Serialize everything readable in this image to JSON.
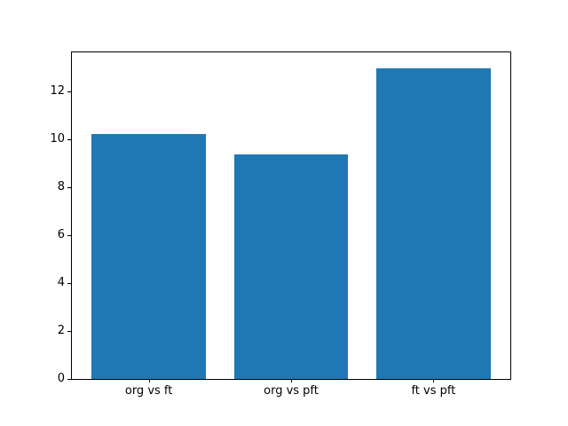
{
  "figure": {
    "background": "#ffffff",
    "frame_color": "#000000",
    "text_color": "#000000"
  },
  "chart_data": {
    "type": "bar",
    "title": "",
    "xlabel": "",
    "ylabel": "",
    "categories": [
      "org vs ft",
      "org vs pft",
      "ft vs pft"
    ],
    "values": [
      10.25,
      9.4,
      13.0
    ],
    "bar_color": "#1f77b4",
    "bar_width_fraction": 0.8,
    "ylim": [
      0,
      13.65
    ],
    "xlim": [
      -0.54,
      2.54
    ],
    "yticks": [
      0,
      2,
      4,
      6,
      8,
      10,
      12
    ],
    "grid": false,
    "legend": null
  }
}
